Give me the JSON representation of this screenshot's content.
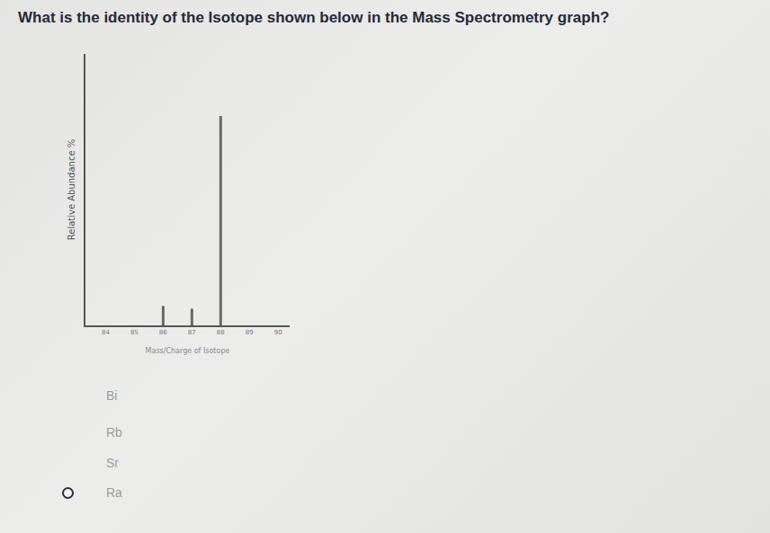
{
  "question": "What is the identity of the Isotope shown below in the Mass Spectrometry graph?",
  "options": [
    "Bi",
    "Rb",
    "Sr",
    "Ra"
  ],
  "chart_data": {
    "type": "bar",
    "x": [
      86,
      87,
      88
    ],
    "values": [
      7,
      6,
      77
    ],
    "color": "#666666",
    "xlabel": "Mass/Charge of Isotope",
    "ylabel": "Relative Abundance %",
    "xlim": [
      83.3,
      90.4
    ],
    "xticks": [
      84,
      85,
      86,
      87,
      88,
      89,
      90
    ],
    "ylim": [
      0,
      100
    ],
    "tick_labels": "x",
    "grid": false
  }
}
